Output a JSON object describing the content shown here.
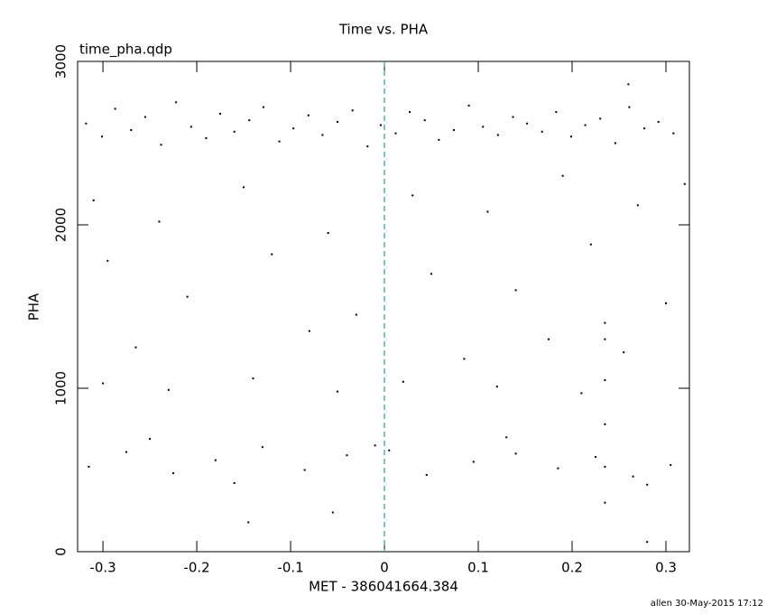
{
  "chart_data": {
    "type": "scatter",
    "title": "Time vs. PHA",
    "annotation": "time_pha.qdp",
    "footer": "allen 30-May-2015 17:12",
    "xlabel": "MET - 386041664.384",
    "ylabel": "PHA",
    "xlim": [
      -0.327,
      0.325
    ],
    "ylim": [
      0,
      3000
    ],
    "xticks": [
      -0.3,
      -0.2,
      -0.1,
      0,
      0.1,
      0.2,
      0.3
    ],
    "yticks": [
      0,
      1000,
      2000,
      3000
    ],
    "vline_x": 0,
    "vline_color": "#2aa0b0",
    "color": "#000000",
    "x": [
      -0.318,
      -0.301,
      -0.287,
      -0.27,
      -0.255,
      -0.238,
      -0.222,
      -0.206,
      -0.19,
      -0.175,
      -0.16,
      -0.144,
      -0.129,
      -0.112,
      -0.097,
      -0.081,
      -0.066,
      -0.05,
      -0.034,
      -0.018,
      -0.004,
      0.012,
      0.027,
      0.043,
      0.058,
      0.074,
      0.09,
      0.105,
      0.121,
      0.137,
      0.152,
      0.168,
      0.183,
      0.199,
      0.214,
      0.23,
      0.246,
      0.261,
      0.277,
      0.292,
      0.308,
      -0.31,
      -0.24,
      -0.15,
      -0.06,
      0.03,
      0.11,
      0.19,
      0.27,
      0.32,
      -0.295,
      -0.21,
      -0.12,
      -0.03,
      0.05,
      0.14,
      0.22,
      0.3,
      -0.265,
      -0.08,
      0.085,
      0.175,
      0.255,
      -0.3,
      -0.23,
      -0.14,
      -0.05,
      0.02,
      0.12,
      0.21,
      -0.315,
      -0.275,
      -0.225,
      -0.18,
      -0.13,
      -0.085,
      -0.04,
      0.005,
      0.045,
      0.095,
      0.14,
      0.185,
      0.225,
      0.265,
      0.305,
      -0.25,
      -0.16,
      -0.01,
      0.13,
      0.28,
      0.235,
      0.235,
      0.235,
      0.235,
      0.235,
      0.235,
      -0.145,
      -0.055,
      0.26,
      0.28
    ],
    "values": [
      2620,
      2540,
      2710,
      2580,
      2660,
      2490,
      2750,
      2600,
      2530,
      2680,
      2570,
      2640,
      2720,
      2510,
      2590,
      2670,
      2550,
      2630,
      2700,
      2480,
      2610,
      2560,
      2690,
      2640,
      2520,
      2580,
      2730,
      2600,
      2550,
      2660,
      2620,
      2570,
      2690,
      2540,
      2610,
      2650,
      2500,
      2720,
      2590,
      2630,
      2560,
      2150,
      2020,
      2230,
      1950,
      2180,
      2080,
      2300,
      2120,
      2250,
      1780,
      1560,
      1820,
      1450,
      1700,
      1600,
      1880,
      1520,
      1250,
      1350,
      1180,
      1300,
      1220,
      1030,
      990,
      1060,
      980,
      1040,
      1010,
      970,
      520,
      610,
      480,
      560,
      640,
      500,
      590,
      620,
      470,
      550,
      600,
      510,
      580,
      460,
      530,
      690,
      420,
      650,
      700,
      410,
      300,
      520,
      780,
      1050,
      1300,
      1400,
      180,
      240,
      2860,
      60
    ]
  }
}
